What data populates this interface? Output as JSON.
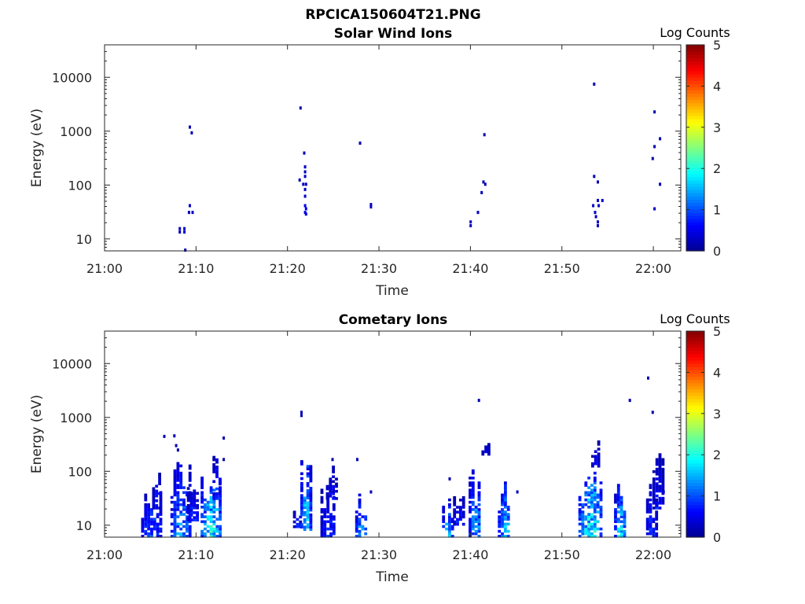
{
  "figure_title": "RPCICA150604T21.PNG",
  "colors": {
    "colormap": [
      "#00008f",
      "#0000ff",
      "#0080ff",
      "#00ffff",
      "#80ff80",
      "#ffff00",
      "#ff8000",
      "#ff0000",
      "#800000"
    ],
    "axis": "#262626",
    "background": "#ffffff"
  },
  "chart_data": [
    {
      "type": "heatmap",
      "title": "Solar Wind Ions",
      "xlabel": "Time",
      "ylabel": "Energy (eV)",
      "yscale": "log",
      "ylim": [
        6,
        40000
      ],
      "xlim": [
        "21:00",
        "22:03"
      ],
      "xticks": [
        "21:00",
        "21:10",
        "21:20",
        "21:30",
        "21:40",
        "21:50",
        "22:00"
      ],
      "yticks": [
        "10",
        "100",
        "1000",
        "10000"
      ],
      "colorbar": {
        "label": "Log Counts",
        "range": [
          0,
          5
        ],
        "ticks": [
          "0",
          "1",
          "2",
          "3",
          "4",
          "5"
        ]
      },
      "grid": false,
      "points": [
        {
          "t": 8.1,
          "e": 15,
          "c": 0.3
        },
        {
          "t": 8.1,
          "e": 13,
          "c": 0.3
        },
        {
          "t": 8.6,
          "e": 15,
          "c": 0.3
        },
        {
          "t": 8.6,
          "e": 13,
          "c": 0.3
        },
        {
          "t": 8.7,
          "e": 6,
          "c": 0.2
        },
        {
          "t": 9.1,
          "e": 30,
          "c": 0.3
        },
        {
          "t": 9.2,
          "e": 40,
          "c": 0.3
        },
        {
          "t": 9.5,
          "e": 30,
          "c": 0.3
        },
        {
          "t": 9.2,
          "e": 1150,
          "c": 0.2
        },
        {
          "t": 9.4,
          "e": 900,
          "c": 0.2
        },
        {
          "t": 21.3,
          "e": 2600,
          "c": 0.2
        },
        {
          "t": 21.2,
          "e": 120,
          "c": 0.2
        },
        {
          "t": 21.7,
          "e": 380,
          "c": 0.2
        },
        {
          "t": 21.8,
          "e": 210,
          "c": 0.3
        },
        {
          "t": 21.8,
          "e": 170,
          "c": 0.3
        },
        {
          "t": 21.8,
          "e": 140,
          "c": 0.3
        },
        {
          "t": 21.6,
          "e": 100,
          "c": 0.3
        },
        {
          "t": 21.9,
          "e": 100,
          "c": 0.3
        },
        {
          "t": 21.8,
          "e": 80,
          "c": 0.3
        },
        {
          "t": 21.8,
          "e": 60,
          "c": 0.3
        },
        {
          "t": 21.8,
          "e": 40,
          "c": 0.5
        },
        {
          "t": 21.9,
          "e": 35,
          "c": 0.6
        },
        {
          "t": 21.8,
          "e": 30,
          "c": 0.5
        },
        {
          "t": 21.9,
          "e": 28,
          "c": 0.4
        },
        {
          "t": 27.8,
          "e": 580,
          "c": 0.2
        },
        {
          "t": 29.0,
          "e": 42,
          "c": 0.3
        },
        {
          "t": 29.0,
          "e": 38,
          "c": 0.3
        },
        {
          "t": 39.9,
          "e": 20,
          "c": 0.3
        },
        {
          "t": 39.9,
          "e": 17,
          "c": 0.3
        },
        {
          "t": 40.7,
          "e": 30,
          "c": 0.3
        },
        {
          "t": 41.1,
          "e": 70,
          "c": 0.2
        },
        {
          "t": 41.3,
          "e": 110,
          "c": 0.2
        },
        {
          "t": 41.5,
          "e": 100,
          "c": 0.2
        },
        {
          "t": 41.4,
          "e": 830,
          "c": 0.2
        },
        {
          "t": 53.4,
          "e": 7200,
          "c": 0.2
        },
        {
          "t": 53.4,
          "e": 140,
          "c": 0.2
        },
        {
          "t": 53.8,
          "e": 110,
          "c": 0.2
        },
        {
          "t": 53.3,
          "e": 40,
          "c": 0.3
        },
        {
          "t": 53.5,
          "e": 30,
          "c": 0.3
        },
        {
          "t": 53.6,
          "e": 25,
          "c": 0.3
        },
        {
          "t": 53.8,
          "e": 20,
          "c": 0.3
        },
        {
          "t": 53.8,
          "e": 17,
          "c": 0.3
        },
        {
          "t": 53.9,
          "e": 40,
          "c": 0.3
        },
        {
          "t": 53.8,
          "e": 50,
          "c": 0.3
        },
        {
          "t": 54.3,
          "e": 50,
          "c": 0.3
        },
        {
          "t": 60.0,
          "e": 2200,
          "c": 0.2
        },
        {
          "t": 60.0,
          "e": 500,
          "c": 0.2
        },
        {
          "t": 59.8,
          "e": 300,
          "c": 0.2
        },
        {
          "t": 60.6,
          "e": 700,
          "c": 0.2
        },
        {
          "t": 60.6,
          "e": 100,
          "c": 0.2
        },
        {
          "t": 60.0,
          "e": 35,
          "c": 0.3
        }
      ]
    },
    {
      "type": "heatmap",
      "title": "Cometary Ions",
      "xlabel": "Time",
      "ylabel": "Energy (eV)",
      "yscale": "log",
      "ylim": [
        6,
        40000
      ],
      "xlim": [
        "21:00",
        "22:03"
      ],
      "xticks": [
        "21:00",
        "21:10",
        "21:20",
        "21:30",
        "21:40",
        "21:50",
        "22:00"
      ],
      "yticks": [
        "10",
        "100",
        "1000",
        "10000"
      ],
      "colorbar": {
        "label": "Log Counts",
        "range": [
          0,
          5
        ],
        "ticks": [
          "0",
          "1",
          "2",
          "3",
          "4",
          "5"
        ]
      },
      "grid": false,
      "bursts": [
        {
          "t0": 4.0,
          "t1": 6.2,
          "elo": 6,
          "ehi": 60,
          "peak": 1.4
        },
        {
          "t0": 5.2,
          "t1": 6.0,
          "elo": 20,
          "ehi": 120,
          "peak": 1.0
        },
        {
          "t0": 7.2,
          "t1": 9.3,
          "elo": 6,
          "ehi": 180,
          "peak": 1.8
        },
        {
          "t0": 9.0,
          "t1": 10.1,
          "elo": 12,
          "ehi": 60,
          "peak": 1.2
        },
        {
          "t0": 10.5,
          "t1": 12.6,
          "elo": 6,
          "ehi": 220,
          "peak": 2.6
        },
        {
          "t0": 11.8,
          "t1": 12.6,
          "elo": 30,
          "ehi": 300,
          "peak": 1.2
        },
        {
          "t0": 20.6,
          "t1": 21.3,
          "elo": 9,
          "ehi": 25,
          "peak": 1.0
        },
        {
          "t0": 21.4,
          "t1": 22.4,
          "elo": 8,
          "ehi": 400,
          "peak": 2.4
        },
        {
          "t0": 23.6,
          "t1": 25.2,
          "elo": 6,
          "ehi": 50,
          "peak": 1.2
        },
        {
          "t0": 24.2,
          "t1": 25.2,
          "elo": 30,
          "ehi": 150,
          "peak": 0.8
        },
        {
          "t0": 27.4,
          "t1": 28.6,
          "elo": 6,
          "ehi": 45,
          "peak": 2.0
        },
        {
          "t0": 36.9,
          "t1": 37.9,
          "elo": 6,
          "ehi": 30,
          "peak": 2.2
        },
        {
          "t0": 38.1,
          "t1": 39.2,
          "elo": 10,
          "ehi": 40,
          "peak": 1.0
        },
        {
          "t0": 39.8,
          "t1": 41.1,
          "elo": 6,
          "ehi": 130,
          "peak": 2.0
        },
        {
          "t0": 41.2,
          "t1": 42.0,
          "elo": 200,
          "ehi": 350,
          "peak": 0.6
        },
        {
          "t0": 43.0,
          "t1": 44.3,
          "elo": 6,
          "ehi": 90,
          "peak": 2.2
        },
        {
          "t0": 51.8,
          "t1": 54.2,
          "elo": 6,
          "ehi": 250,
          "peak": 2.6
        },
        {
          "t0": 53.2,
          "t1": 54.0,
          "elo": 120,
          "ehi": 380,
          "peak": 0.8
        },
        {
          "t0": 55.7,
          "t1": 56.9,
          "elo": 6,
          "ehi": 80,
          "peak": 2.4
        },
        {
          "t0": 59.2,
          "t1": 60.2,
          "elo": 6,
          "ehi": 70,
          "peak": 1.2
        },
        {
          "t0": 59.9,
          "t1": 60.9,
          "elo": 20,
          "ehi": 230,
          "peak": 1.0
        }
      ],
      "points": [
        {
          "t": 6.4,
          "e": 430,
          "c": 0.2
        },
        {
          "t": 7.5,
          "e": 440,
          "c": 0.2
        },
        {
          "t": 7.7,
          "e": 290,
          "c": 0.2
        },
        {
          "t": 7.9,
          "e": 240,
          "c": 0.2
        },
        {
          "t": 12.9,
          "e": 160,
          "c": 0.2
        },
        {
          "t": 12.9,
          "e": 400,
          "c": 0.2
        },
        {
          "t": 21.4,
          "e": 1200,
          "c": 0.2
        },
        {
          "t": 21.4,
          "e": 1050,
          "c": 0.2
        },
        {
          "t": 24.8,
          "e": 160,
          "c": 0.2
        },
        {
          "t": 27.5,
          "e": 160,
          "c": 0.2
        },
        {
          "t": 29.0,
          "e": 40,
          "c": 0.3
        },
        {
          "t": 37.6,
          "e": 70,
          "c": 0.2
        },
        {
          "t": 40.8,
          "e": 2000,
          "c": 0.2
        },
        {
          "t": 45.0,
          "e": 40,
          "c": 0.3
        },
        {
          "t": 57.3,
          "e": 2000,
          "c": 0.2
        },
        {
          "t": 59.3,
          "e": 5200,
          "c": 0.2
        },
        {
          "t": 59.8,
          "e": 1200,
          "c": 0.2
        },
        {
          "t": 61.0,
          "e": 40,
          "c": 0.3
        }
      ]
    }
  ]
}
